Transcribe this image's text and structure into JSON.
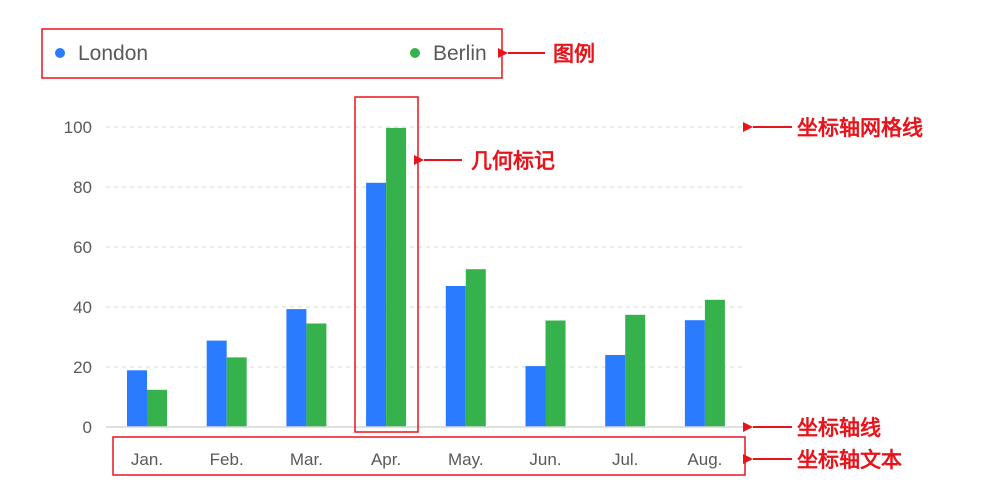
{
  "chart_data": {
    "type": "bar",
    "categories": [
      "Jan.",
      "Feb.",
      "Mar.",
      "Apr.",
      "May.",
      "Jun.",
      "Jul.",
      "Aug."
    ],
    "series": [
      {
        "name": "London",
        "color": "#2a7bff",
        "values": [
          18.9,
          28.8,
          39.3,
          81.4,
          47,
          20.3,
          24,
          35.6
        ]
      },
      {
        "name": "Berlin",
        "color": "#35b24b",
        "values": [
          12.4,
          23.2,
          34.5,
          99.7,
          52.6,
          35.5,
          37.4,
          42.4
        ]
      }
    ],
    "yticks": [
      0,
      20,
      40,
      60,
      80,
      100
    ],
    "ylim": [
      0,
      100
    ],
    "grid": true,
    "legend_position": "top"
  },
  "annotations": {
    "legend": "图例",
    "gridlines": "坐标轴网格线",
    "marks": "几何标记",
    "axis_line": "坐标轴线",
    "axis_text": "坐标轴文本",
    "color": "#e8141b"
  }
}
